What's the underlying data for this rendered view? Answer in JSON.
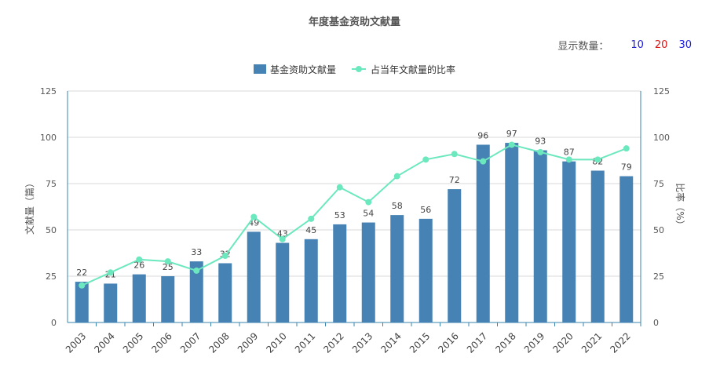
{
  "page": {
    "title": "年度基金资助文献量",
    "display_count_label": "显示数量：",
    "display_options": [
      {
        "label": "10",
        "color": "#1a1adb"
      },
      {
        "label": "20",
        "color": "#e01010"
      },
      {
        "label": "30",
        "color": "#1a1adb"
      }
    ]
  },
  "chart_data": {
    "type": "bar",
    "categories": [
      "2003",
      "2004",
      "2005",
      "2006",
      "2007",
      "2008",
      "2009",
      "2010",
      "2011",
      "2012",
      "2013",
      "2014",
      "2015",
      "2016",
      "2017",
      "2018",
      "2019",
      "2020",
      "2021",
      "2022"
    ],
    "series": [
      {
        "name": "基金资助文献量",
        "type": "bar",
        "color": "#4682b4",
        "values": [
          22,
          21,
          26,
          25,
          33,
          32,
          49,
          43,
          45,
          53,
          54,
          58,
          56,
          72,
          96,
          97,
          93,
          87,
          82,
          79
        ]
      },
      {
        "name": "占当年文献量的比率",
        "type": "line",
        "color": "#6ce8bf",
        "values": [
          20,
          27,
          34,
          33,
          28,
          36,
          57,
          45,
          56,
          73,
          65,
          79,
          88,
          91,
          87,
          96,
          92,
          88,
          88,
          94
        ]
      }
    ],
    "ylabel_left": "文献量（篇）",
    "ylabel_right": "比率（%）",
    "ylim_left": [
      0,
      125
    ],
    "ylim_right": [
      0,
      125
    ],
    "yticks": [
      "0",
      "25",
      "50",
      "75",
      "100",
      "125"
    ],
    "grid": true,
    "legend": "top-center"
  }
}
